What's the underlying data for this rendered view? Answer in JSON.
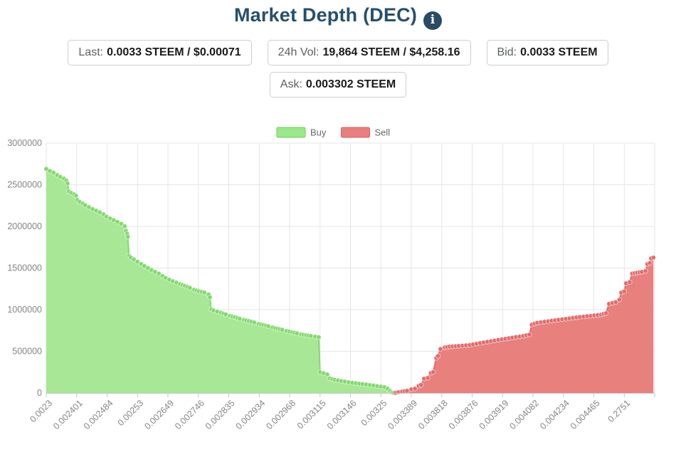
{
  "header": {
    "title": "Market Depth (DEC)",
    "info_icon": "i",
    "stats": [
      {
        "label": "Last:",
        "value": "0.0033 STEEM / $0.00071"
      },
      {
        "label": "24h Vol:",
        "value": "19,864 STEEM / $4,258.16"
      },
      {
        "label": "Bid:",
        "value": "0.0033 STEEM"
      },
      {
        "label": "Ask:",
        "value": "0.003302 STEEM"
      }
    ]
  },
  "chart_data": {
    "type": "area",
    "subtype": "market-depth",
    "title": "",
    "xlabel": "",
    "ylabel": "",
    "legend_position": "top-center",
    "grid": true,
    "grid_color": "#e6e6e6",
    "axis_line_color": "#c6c6c6",
    "axis_label_color": "#858585",
    "legend_text_color": "#666666",
    "ylim": [
      0,
      3000000
    ],
    "yticks": [
      0,
      500000,
      1000000,
      1500000,
      2000000,
      2500000,
      3000000
    ],
    "xlabels": [
      "0.0023",
      "0.002401",
      "0.002484",
      "0.00253",
      "0.002649",
      "0.002746",
      "0.002835",
      "0.002934",
      "0.002968",
      "0.003115",
      "0.003146",
      "0.00325",
      "0.003389",
      "0.003818",
      "0.003876",
      "0.003919",
      "0.004082",
      "0.004234",
      "0.004465",
      "0.2751"
    ],
    "series": [
      {
        "name": "Buy",
        "line_color": "#82DA6D",
        "fill_color": "#A7E795",
        "swatch_fill": "#9BE889",
        "swatch_border": "#6FCB5B",
        "points": [
          [
            0.0,
            2690000
          ],
          [
            0.006,
            2665000
          ],
          [
            0.012,
            2645000
          ],
          [
            0.018,
            2615000
          ],
          [
            0.023,
            2595000
          ],
          [
            0.029,
            2573000
          ],
          [
            0.033,
            2550000
          ],
          [
            0.035,
            2516000
          ],
          [
            0.037,
            2420000
          ],
          [
            0.041,
            2402000
          ],
          [
            0.046,
            2385000
          ],
          [
            0.049,
            2368000
          ],
          [
            0.051,
            2317000
          ],
          [
            0.055,
            2294000
          ],
          [
            0.06,
            2274000
          ],
          [
            0.064,
            2254000
          ],
          [
            0.07,
            2231000
          ],
          [
            0.076,
            2208000
          ],
          [
            0.082,
            2188000
          ],
          [
            0.088,
            2168000
          ],
          [
            0.094,
            2145000
          ],
          [
            0.099,
            2117000
          ],
          [
            0.105,
            2094000
          ],
          [
            0.111,
            2074000
          ],
          [
            0.117,
            2054000
          ],
          [
            0.123,
            2031000
          ],
          [
            0.129,
            2002000
          ],
          [
            0.131,
            1946000
          ],
          [
            0.133,
            1911000
          ],
          [
            0.134,
            1874000
          ],
          [
            0.136,
            1647000
          ],
          [
            0.139,
            1626000
          ],
          [
            0.144,
            1604000
          ],
          [
            0.15,
            1575000
          ],
          [
            0.156,
            1547000
          ],
          [
            0.161,
            1524000
          ],
          [
            0.167,
            1501000
          ],
          [
            0.173,
            1476000
          ],
          [
            0.179,
            1455000
          ],
          [
            0.185,
            1433000
          ],
          [
            0.191,
            1404000
          ],
          [
            0.196,
            1382000
          ],
          [
            0.202,
            1361000
          ],
          [
            0.208,
            1342000
          ],
          [
            0.214,
            1325000
          ],
          [
            0.22,
            1305000
          ],
          [
            0.228,
            1285000
          ],
          [
            0.236,
            1262000
          ],
          [
            0.243,
            1239000
          ],
          [
            0.251,
            1220000
          ],
          [
            0.26,
            1205000
          ],
          [
            0.267,
            1182000
          ],
          [
            0.269,
            1148000
          ],
          [
            0.271,
            1006000
          ],
          [
            0.275,
            991000
          ],
          [
            0.281,
            977000
          ],
          [
            0.287,
            963000
          ],
          [
            0.295,
            943000
          ],
          [
            0.302,
            926000
          ],
          [
            0.31,
            909000
          ],
          [
            0.318,
            891000
          ],
          [
            0.325,
            878000
          ],
          [
            0.333,
            863000
          ],
          [
            0.342,
            846000
          ],
          [
            0.349,
            829000
          ],
          [
            0.357,
            815000
          ],
          [
            0.365,
            801000
          ],
          [
            0.372,
            786000
          ],
          [
            0.38,
            772000
          ],
          [
            0.388,
            758000
          ],
          [
            0.395,
            744000
          ],
          [
            0.404,
            729000
          ],
          [
            0.412,
            715000
          ],
          [
            0.419,
            703000
          ],
          [
            0.427,
            692000
          ],
          [
            0.435,
            684000
          ],
          [
            0.442,
            675000
          ],
          [
            0.448,
            669000
          ],
          [
            0.45,
            250000
          ],
          [
            0.456,
            237000
          ],
          [
            0.462,
            222000
          ],
          [
            0.466,
            174000
          ],
          [
            0.474,
            157000
          ],
          [
            0.485,
            143000
          ],
          [
            0.497,
            128000
          ],
          [
            0.509,
            117000
          ],
          [
            0.52,
            106000
          ],
          [
            0.532,
            95000
          ],
          [
            0.544,
            82000
          ],
          [
            0.556,
            68000
          ],
          [
            0.561,
            51000
          ],
          [
            0.565,
            26000
          ],
          [
            0.568,
            8000
          ],
          [
            0.571,
            2000
          ]
        ]
      },
      {
        "name": "Sell",
        "line_color": "#E26B6B",
        "fill_color": "#E8807E",
        "swatch_fill": "#E87F7E",
        "swatch_border": "#D85F5F",
        "points": [
          [
            0.574,
            2000
          ],
          [
            0.579,
            9000
          ],
          [
            0.585,
            17000
          ],
          [
            0.593,
            26000
          ],
          [
            0.6,
            43000
          ],
          [
            0.606,
            51000
          ],
          [
            0.612,
            85000
          ],
          [
            0.616,
            97000
          ],
          [
            0.621,
            171000
          ],
          [
            0.627,
            180000
          ],
          [
            0.632,
            239000
          ],
          [
            0.636,
            250000
          ],
          [
            0.641,
            419000
          ],
          [
            0.644,
            444000
          ],
          [
            0.648,
            527000
          ],
          [
            0.655,
            547000
          ],
          [
            0.663,
            556000
          ],
          [
            0.678,
            564000
          ],
          [
            0.696,
            575000
          ],
          [
            0.713,
            598000
          ],
          [
            0.731,
            621000
          ],
          [
            0.749,
            644000
          ],
          [
            0.766,
            664000
          ],
          [
            0.784,
            684000
          ],
          [
            0.794,
            700000
          ],
          [
            0.798,
            820000
          ],
          [
            0.807,
            843000
          ],
          [
            0.825,
            861000
          ],
          [
            0.842,
            878000
          ],
          [
            0.86,
            895000
          ],
          [
            0.877,
            912000
          ],
          [
            0.895,
            926000
          ],
          [
            0.912,
            940000
          ],
          [
            0.92,
            957000
          ],
          [
            0.925,
            1070000
          ],
          [
            0.936,
            1091000
          ],
          [
            0.942,
            1120000
          ],
          [
            0.945,
            1205000
          ],
          [
            0.95,
            1220000
          ],
          [
            0.953,
            1316000
          ],
          [
            0.959,
            1331000
          ],
          [
            0.963,
            1433000
          ],
          [
            0.971,
            1444000
          ],
          [
            0.979,
            1453000
          ],
          [
            0.985,
            1464000
          ],
          [
            0.988,
            1547000
          ],
          [
            0.992,
            1561000
          ],
          [
            0.994,
            1615000
          ],
          [
            0.998,
            1626000
          ]
        ]
      }
    ]
  }
}
